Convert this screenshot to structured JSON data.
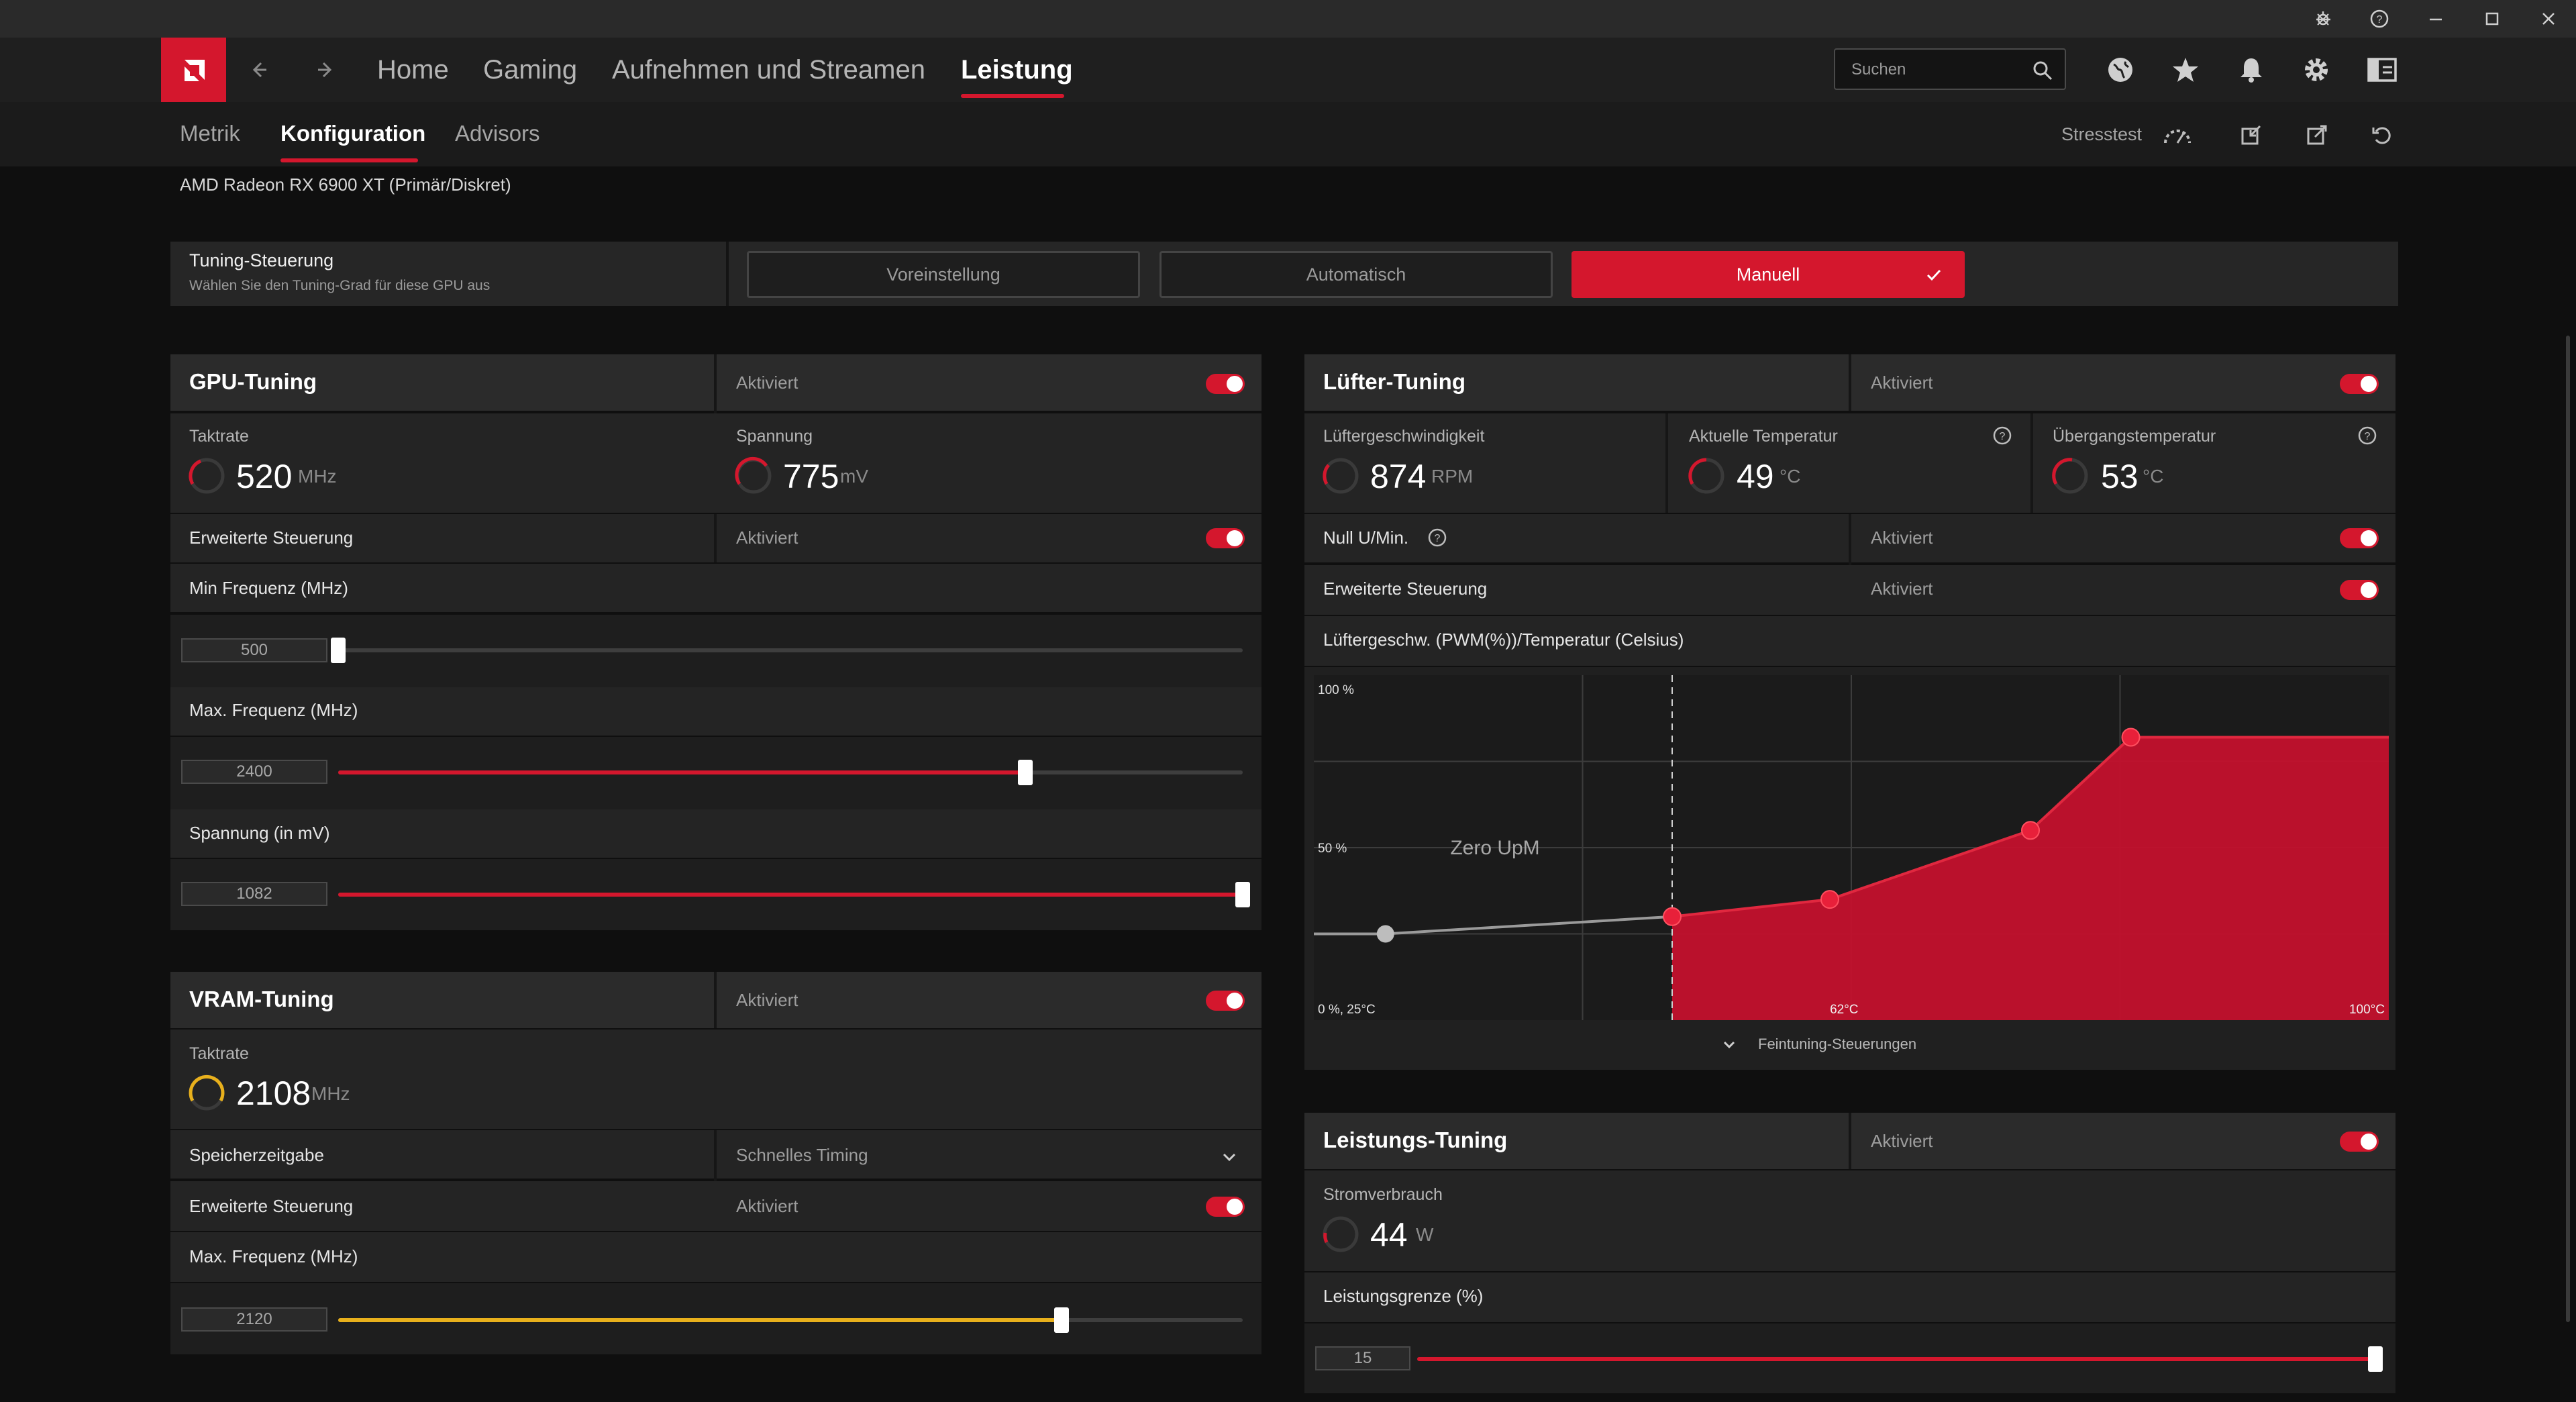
{
  "window": {
    "controls": [
      "bug-icon",
      "help-icon",
      "minimize-icon",
      "maximize-icon",
      "close-icon"
    ]
  },
  "nav": {
    "items": [
      {
        "label": "Home"
      },
      {
        "label": "Gaming"
      },
      {
        "label": "Aufnehmen und Streamen"
      },
      {
        "label": "Leistung",
        "active": true
      }
    ],
    "search_placeholder": "Suchen",
    "icons": [
      "globe-icon",
      "star-icon",
      "bell-icon",
      "gear-icon",
      "sidebar-icon"
    ]
  },
  "subnav": {
    "tabs": [
      {
        "label": "Metrik"
      },
      {
        "label": "Konfiguration",
        "active": true
      },
      {
        "label": "Advisors"
      }
    ],
    "stress_label": "Stresstest"
  },
  "gpu_name": "AMD Radeon RX 6900 XT (Primär/Diskret)",
  "tuning_control": {
    "title": "Tuning-Steuerung",
    "subtitle": "Wählen Sie den Tuning-Grad für diese GPU aus",
    "options": [
      "Voreinstellung",
      "Automatisch",
      "Manuell"
    ],
    "selected": "Manuell"
  },
  "gpu_tuning": {
    "title": "GPU-Tuning",
    "status": "Aktiviert",
    "clock": {
      "label": "Taktrate",
      "value": "520",
      "unit": "MHz"
    },
    "voltage": {
      "label": "Spannung",
      "value": "775",
      "unit": "mV"
    },
    "advanced": {
      "label": "Erweiterte Steuerung",
      "status": "Aktiviert"
    },
    "min_freq": {
      "label": "Min Frequenz (MHz)",
      "value": "500",
      "level": 0.0
    },
    "max_freq": {
      "label": "Max. Frequenz (MHz)",
      "value": "2400",
      "level": 0.76
    },
    "voltage_limit": {
      "label": "Spannung (in mV)",
      "value": "1082",
      "level": 1.0
    }
  },
  "vram_tuning": {
    "title": "VRAM-Tuning",
    "status": "Aktiviert",
    "clock": {
      "label": "Taktrate",
      "value": "2108",
      "unit": "MHz"
    },
    "timing": {
      "label": "Speicherzeitgabe",
      "value": "Schnelles Timing"
    },
    "advanced": {
      "label": "Erweiterte Steuerung",
      "status": "Aktiviert"
    },
    "max_freq": {
      "label": "Max. Frequenz (MHz)",
      "value": "2120",
      "level": 0.8
    }
  },
  "fan_tuning": {
    "title": "Lüfter-Tuning",
    "status": "Aktiviert",
    "fan_speed": {
      "label": "Lüftergeschwindigkeit",
      "value": "874",
      "unit": "RPM"
    },
    "current_temp": {
      "label": "Aktuelle Temperatur",
      "value": "49",
      "unit": "°C"
    },
    "junction_temp": {
      "label": "Übergangstemperatur",
      "value": "53",
      "unit": "°C"
    },
    "zero_rpm": {
      "label": "Null U/Min.",
      "status": "Aktiviert"
    },
    "advanced": {
      "label": "Erweiterte Steuerung",
      "status": "Aktiviert"
    },
    "curve_title": "Lüftergeschw. (PWM(%))/Temperatur (Celsius)",
    "fine_tuning": "Feintuning-Steuerungen"
  },
  "chart_data": {
    "type": "area",
    "x_unit": "°C",
    "y_unit": "%",
    "xlim": [
      25,
      100
    ],
    "ylim": [
      0,
      100
    ],
    "labels": {
      "y_top": "100 %",
      "y_mid": "50 %",
      "origin": "0 %, 25°C",
      "x_mid": "62°C",
      "x_max": "100°C",
      "zone": "Zero UpM"
    },
    "zero_rpm_point": {
      "x": 30,
      "y": 25
    },
    "zero_rpm_threshold": 50,
    "points": [
      {
        "x": 50,
        "y": 30
      },
      {
        "x": 61,
        "y": 35
      },
      {
        "x": 75,
        "y": 55
      },
      {
        "x": 82,
        "y": 82
      }
    ],
    "grid": true,
    "fill_color": "#c8102e"
  },
  "power_tuning": {
    "title": "Leistungs-Tuning",
    "status": "Aktiviert",
    "consumption": {
      "label": "Stromverbrauch",
      "value": "44",
      "unit": "W"
    },
    "limit": {
      "label": "Leistungsgrenze (%)",
      "value": "15",
      "level": 1.0
    }
  },
  "colors": {
    "accent": "#d4172d",
    "vram": "#e8b01c",
    "background": "#0f0f0f"
  }
}
